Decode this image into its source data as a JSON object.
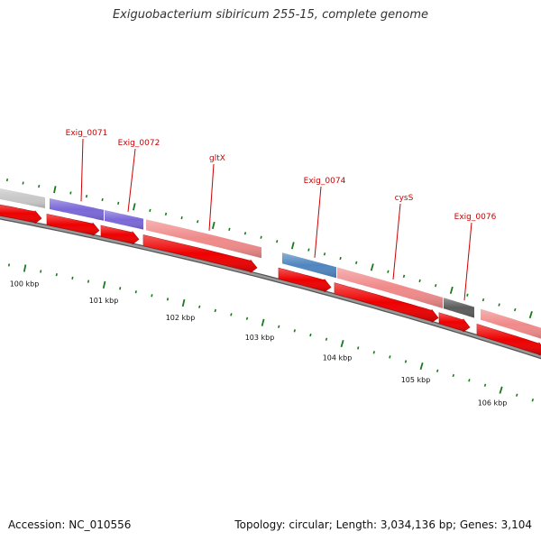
{
  "title": "Exiguobacterium sibiricum 255-15, complete genome",
  "footer": {
    "accession": "Accession: NC_010556",
    "summary": "Topology: circular; Length: 3,034,136 bp; Genes: 3,104"
  },
  "colors": {
    "backbone": "#7a7a7a",
    "cds": "#ee0000",
    "gene_label": "#cc0000",
    "tick": "#1a7a1a",
    "track_grey": "#c8c8c8",
    "track_purple": "#7b68d8",
    "track_pink": "#f08a8a",
    "track_blue": "#4f86bf",
    "track_dark": "#5c5c5c"
  },
  "gene_labels": [
    {
      "text": "Exig_0071"
    },
    {
      "text": "Exig_0072"
    },
    {
      "text": "gltX"
    },
    {
      "text": "Exig_0074"
    },
    {
      "text": "cysS"
    },
    {
      "text": "Exig_0076"
    }
  ],
  "kbp_labels": [
    {
      "text": "100 kbp"
    },
    {
      "text": "101 kbp"
    },
    {
      "text": "102 kbp"
    },
    {
      "text": "103 kbp"
    },
    {
      "text": "104 kbp"
    },
    {
      "text": "105 kbp"
    },
    {
      "text": "106 kbp"
    }
  ]
}
